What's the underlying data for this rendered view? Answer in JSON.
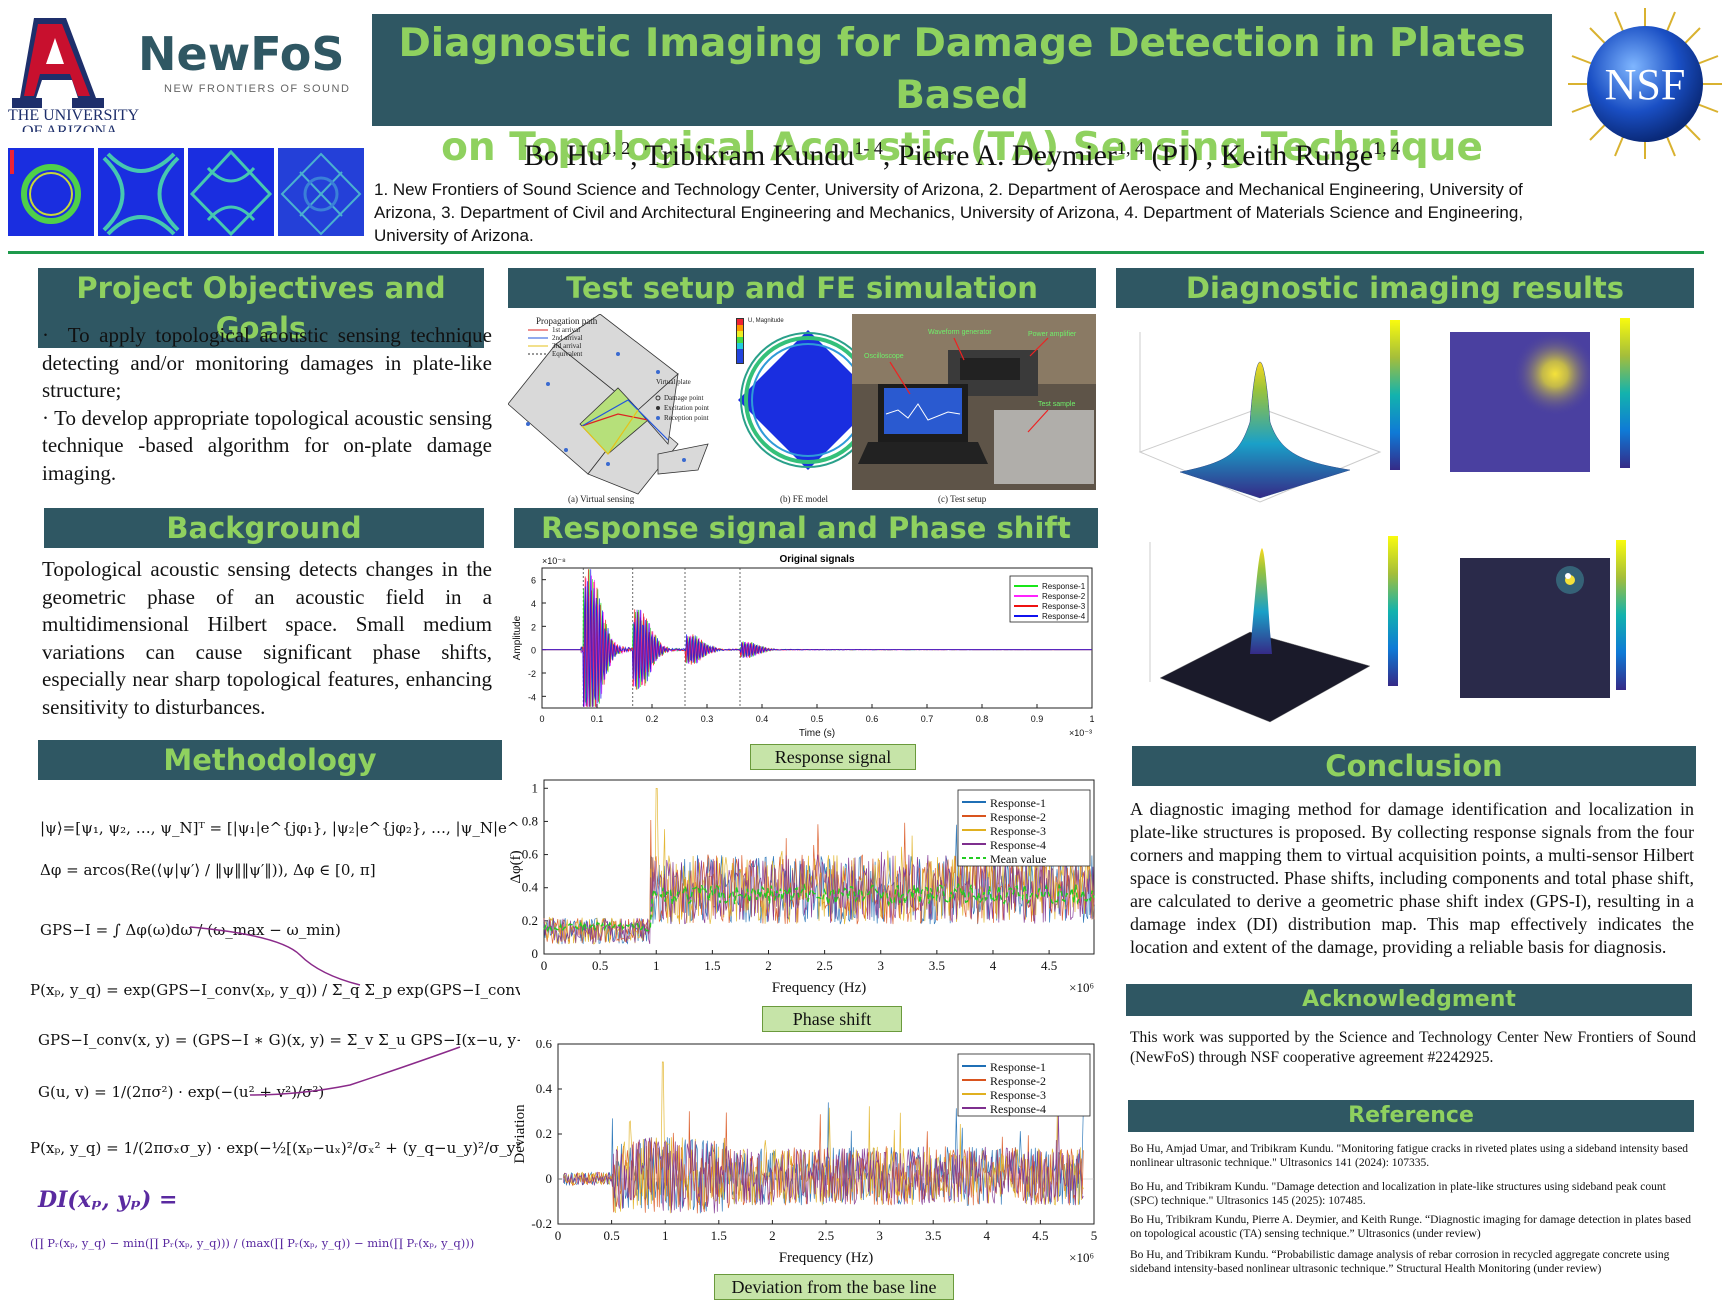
{
  "header": {
    "ua_logo_line1": "THE UNIVERSITY",
    "ua_logo_line2": "OF ARIZONA",
    "newfos_logo": "NewFoS",
    "newfos_tagline": "NEW FRONTIERS OF SOUND",
    "title_line1": "Diagnostic Imaging for Damage Detection in Plates Based",
    "title_line2": "on Topological Acoustic (TA) Sensing Technique",
    "nsf_logo": "NSF",
    "authors": [
      {
        "name": "Bo Hu",
        "sup": "1, 2"
      },
      {
        "name": "Tribikram Kundu",
        "sup": "1- 4"
      },
      {
        "name": "Pierre A. Deymier",
        "sup": "1, 4",
        "suffix": " (PI)"
      },
      {
        "name": "Keith Runge",
        "sup": "1, 4"
      }
    ],
    "affiliations": "1. New Frontiers of Sound Science and Technology Center, University of Arizona, 2. Department of Aerospace and Mechanical Engineering, University of Arizona, 3. Department of Civil and Architectural Engineering and Mechanics, University of Arizona, 4. Department of Materials Science and Engineering, University of Arizona."
  },
  "objectives": {
    "heading": "Project Objectives and Goals",
    "bullets": [
      "To apply topological acoustic sensing technique detecting and/or monitoring damages in plate-like structure;",
      "To develop appropriate topological acoustic sensing technique -based algorithm for on-plate damage imaging."
    ]
  },
  "background": {
    "heading": "Background",
    "text": "Topological acoustic sensing detects changes in the geometric phase of an acoustic field in a multidimensional Hilbert space. Small medium variations can cause significant phase shifts, especially near sharp topological features, enhancing sensitivity to disturbances."
  },
  "methodology": {
    "heading": "Methodology",
    "di_label": "DI(xₚ, yₚ) ="
  },
  "test_setup": {
    "heading": "Test setup and FE simulation",
    "caption_a": "(a) Virtual sensing",
    "caption_b": "(b) FE model",
    "caption_c": "(c) Test setup",
    "legend_title": "Propagation path",
    "legend_items": [
      "1st arrival",
      "2nd arrival",
      "3rd arrival",
      "Equivalent"
    ],
    "point_items": [
      "Damage point",
      "Excitation point",
      "Reception point"
    ],
    "virtual_plate": "Virtual plate",
    "fe_legend_title": "U, Magnitude",
    "photo_labels": [
      "Waveform generator",
      "Power amplifier",
      "Oscilloscope",
      "Test sample"
    ]
  },
  "response": {
    "heading": "Response signal and Phase shift",
    "caption1": "Response signal",
    "caption2": "Phase shift",
    "caption3": "Deviation from the base line"
  },
  "imaging": {
    "heading": "Diagnostic imaging results"
  },
  "conclusion": {
    "heading": "Conclusion",
    "text": "A diagnostic imaging method for damage identification and localization in plate-like structures is proposed. By collecting response signals from the four corners and mapping them to virtual acquisition points, a multi-sensor Hilbert space is constructed. Phase shifts, including components and total phase shift, are calculated to derive a geometric phase shift index (GPS-I), resulting in a damage index (DI) distribution map. This map effectively indicates the location and extent of the damage, providing a reliable basis for diagnosis."
  },
  "acknowledgment": {
    "heading": "Acknowledgment",
    "text": "This work was supported by the Science and Technology Center New Frontiers of Sound (NewFoS) through NSF cooperative agreement #2242925."
  },
  "references": {
    "heading": "Reference",
    "items": [
      "Bo Hu, Amjad Umar, and Tribikram Kundu. \"Monitoring fatigue cracks in riveted plates using a sideband intensity based nonlinear ultrasonic technique.\" Ultrasonics 141 (2024): 107335.",
      "Bo Hu, and Tribikram Kundu. \"Damage detection and localization in plate-like structures using sideband peak count (SPC) technique.\" Ultrasonics 145 (2025): 107485.",
      "Bo Hu, Tribikram Kundu, Pierre A. Deymier, and Keith Runge. “Diagnostic imaging for damage detection in plates based on topological acoustic (TA) sensing technique.” Ultrasonics (under review)",
      "Bo Hu, and Tribikram Kundu. “Probabilistic damage analysis of rebar corrosion in recycled aggregate concrete using sideband intensity-based nonlinear ultrasonic technique.” Structural Health Monitoring (under review)"
    ]
  },
  "colors": {
    "header_bg": "#2f5763",
    "header_text": "#8fd15f",
    "caption_bg": "#c6e4a8",
    "rule": "#1e9a4c"
  },
  "chart_data": [
    {
      "type": "line",
      "title": "Original signals",
      "xlabel": "Time (s)",
      "ylabel": "Amplitude",
      "x_multiplier": "×10⁻³",
      "y_multiplier": "×10⁻⁸",
      "xlim": [
        0,
        1
      ],
      "ylim": [
        -5,
        7
      ],
      "xticks": [
        "0",
        "0.1",
        "0.2",
        "0.3",
        "0.4",
        "0.5",
        "0.6",
        "0.7",
        "0.8",
        "0.9",
        "1"
      ],
      "yticks": [
        "6",
        "4",
        "2",
        "0",
        "-2",
        "-4"
      ],
      "series": [
        {
          "name": "Response-1",
          "color": "#19e619"
        },
        {
          "name": "Response-2",
          "color": "#ff22ff"
        },
        {
          "name": "Response-3",
          "color": "#ee1111"
        },
        {
          "name": "Response-4",
          "color": "#1111ee"
        }
      ],
      "packets": [
        {
          "t": 0.085,
          "amp": 7
        },
        {
          "t": 0.175,
          "amp": 3.5
        },
        {
          "t": 0.27,
          "amp": 1.3
        },
        {
          "t": 0.37,
          "amp": 0.7
        }
      ]
    },
    {
      "type": "line",
      "xlabel": "Frequency (Hz)",
      "ylabel": "Δφ(f)",
      "x_multiplier": "×10⁶",
      "xlim": [
        0,
        4.9
      ],
      "ylim": [
        0,
        1.05
      ],
      "xticks": [
        "0",
        "0.5",
        "1",
        "1.5",
        "2",
        "2.5",
        "3",
        "3.5",
        "4",
        "4.5"
      ],
      "yticks": [
        "1",
        "0.8",
        "0.6",
        "0.4",
        "0.2",
        "0"
      ],
      "series": [
        {
          "name": "Response-1",
          "color": "#1f6fb5"
        },
        {
          "name": "Response-2",
          "color": "#d9541e"
        },
        {
          "name": "Response-3",
          "color": "#e0b020"
        },
        {
          "name": "Response-4",
          "color": "#7e2f8e"
        },
        {
          "name": "Mean value",
          "color": "#22cc22",
          "dashed": true
        }
      ]
    },
    {
      "type": "line",
      "xlabel": "Frequency (Hz)",
      "ylabel": "Deviation",
      "x_multiplier": "×10⁶",
      "xlim": [
        0,
        5
      ],
      "ylim": [
        -0.2,
        0.6
      ],
      "xticks": [
        "0",
        "0.5",
        "1",
        "1.5",
        "2",
        "2.5",
        "3",
        "3.5",
        "4",
        "4.5",
        "5"
      ],
      "yticks": [
        "0.6",
        "0.4",
        "0.2",
        "0",
        "-0.2"
      ],
      "series": [
        {
          "name": "Response-1",
          "color": "#1f6fb5"
        },
        {
          "name": "Response-2",
          "color": "#d9541e"
        },
        {
          "name": "Response-3",
          "color": "#e0b020"
        },
        {
          "name": "Response-4",
          "color": "#7e2f8e"
        }
      ]
    }
  ]
}
